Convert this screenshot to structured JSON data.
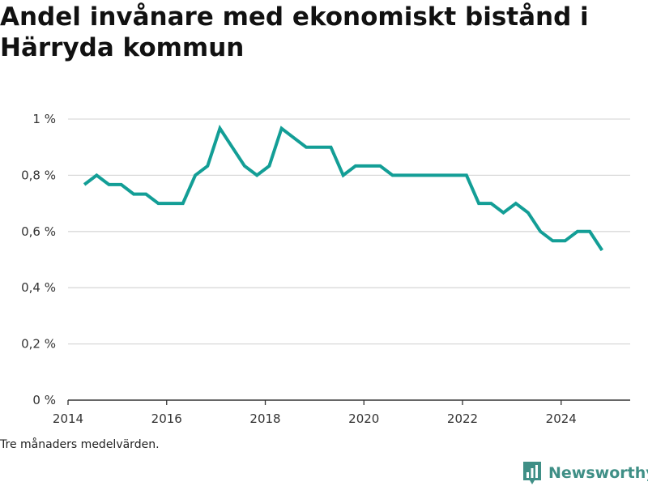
{
  "title": "Andel invånare med ekonomiskt bistånd i Härryda kommun",
  "note": "Tre månaders medelvärden.",
  "brand": {
    "name": "Newsworthy",
    "icon": "newsworthy-logo-icon",
    "color": "#3f8f86"
  },
  "chart_data": {
    "type": "line",
    "title": "Andel invånare med ekonomiskt bistånd i Härryda kommun",
    "xlabel": "",
    "ylabel": "",
    "xlim": [
      2014,
      2025.4
    ],
    "ylim": [
      0,
      1
    ],
    "grid": true,
    "line_color": "#139e96",
    "x_ticks": [
      2014,
      2016,
      2018,
      2020,
      2022,
      2024
    ],
    "x_tick_labels": [
      "2014",
      "2016",
      "2018",
      "2020",
      "2022",
      "2024"
    ],
    "y_ticks": [
      0,
      0.2,
      0.4,
      0.6,
      0.8,
      1.0
    ],
    "y_tick_labels": [
      "0 %",
      "0,2 %",
      "0,4 %",
      "0,6 %",
      "0,8 %",
      "1 %"
    ],
    "series": [
      {
        "x": [
          2014.33,
          2014.58,
          2014.83,
          2015.08,
          2015.33,
          2015.58,
          2015.83,
          2016.08,
          2016.33,
          2016.58,
          2016.83,
          2017.08,
          2017.33,
          2017.58,
          2017.83,
          2018.08,
          2018.33,
          2018.58,
          2018.83,
          2019.08,
          2019.33,
          2019.58,
          2019.83,
          2020.08,
          2020.33,
          2020.58,
          2020.83,
          2021.08,
          2021.33,
          2021.58,
          2021.83,
          2022.08,
          2022.33,
          2022.58,
          2022.83,
          2023.08,
          2023.33,
          2023.58,
          2023.83,
          2024.08,
          2024.33,
          2024.58,
          2024.83
        ],
        "y": [
          0.767,
          0.8,
          0.767,
          0.767,
          0.733,
          0.733,
          0.7,
          0.7,
          0.7,
          0.8,
          0.833,
          0.967,
          0.9,
          0.833,
          0.8,
          0.833,
          0.967,
          0.933,
          0.9,
          0.9,
          0.9,
          0.8,
          0.833,
          0.833,
          0.833,
          0.8,
          0.8,
          0.8,
          0.8,
          0.8,
          0.8,
          0.8,
          0.7,
          0.7,
          0.667,
          0.7,
          0.667,
          0.6,
          0.567,
          0.567,
          0.6,
          0.6,
          0.533
        ]
      }
    ]
  }
}
